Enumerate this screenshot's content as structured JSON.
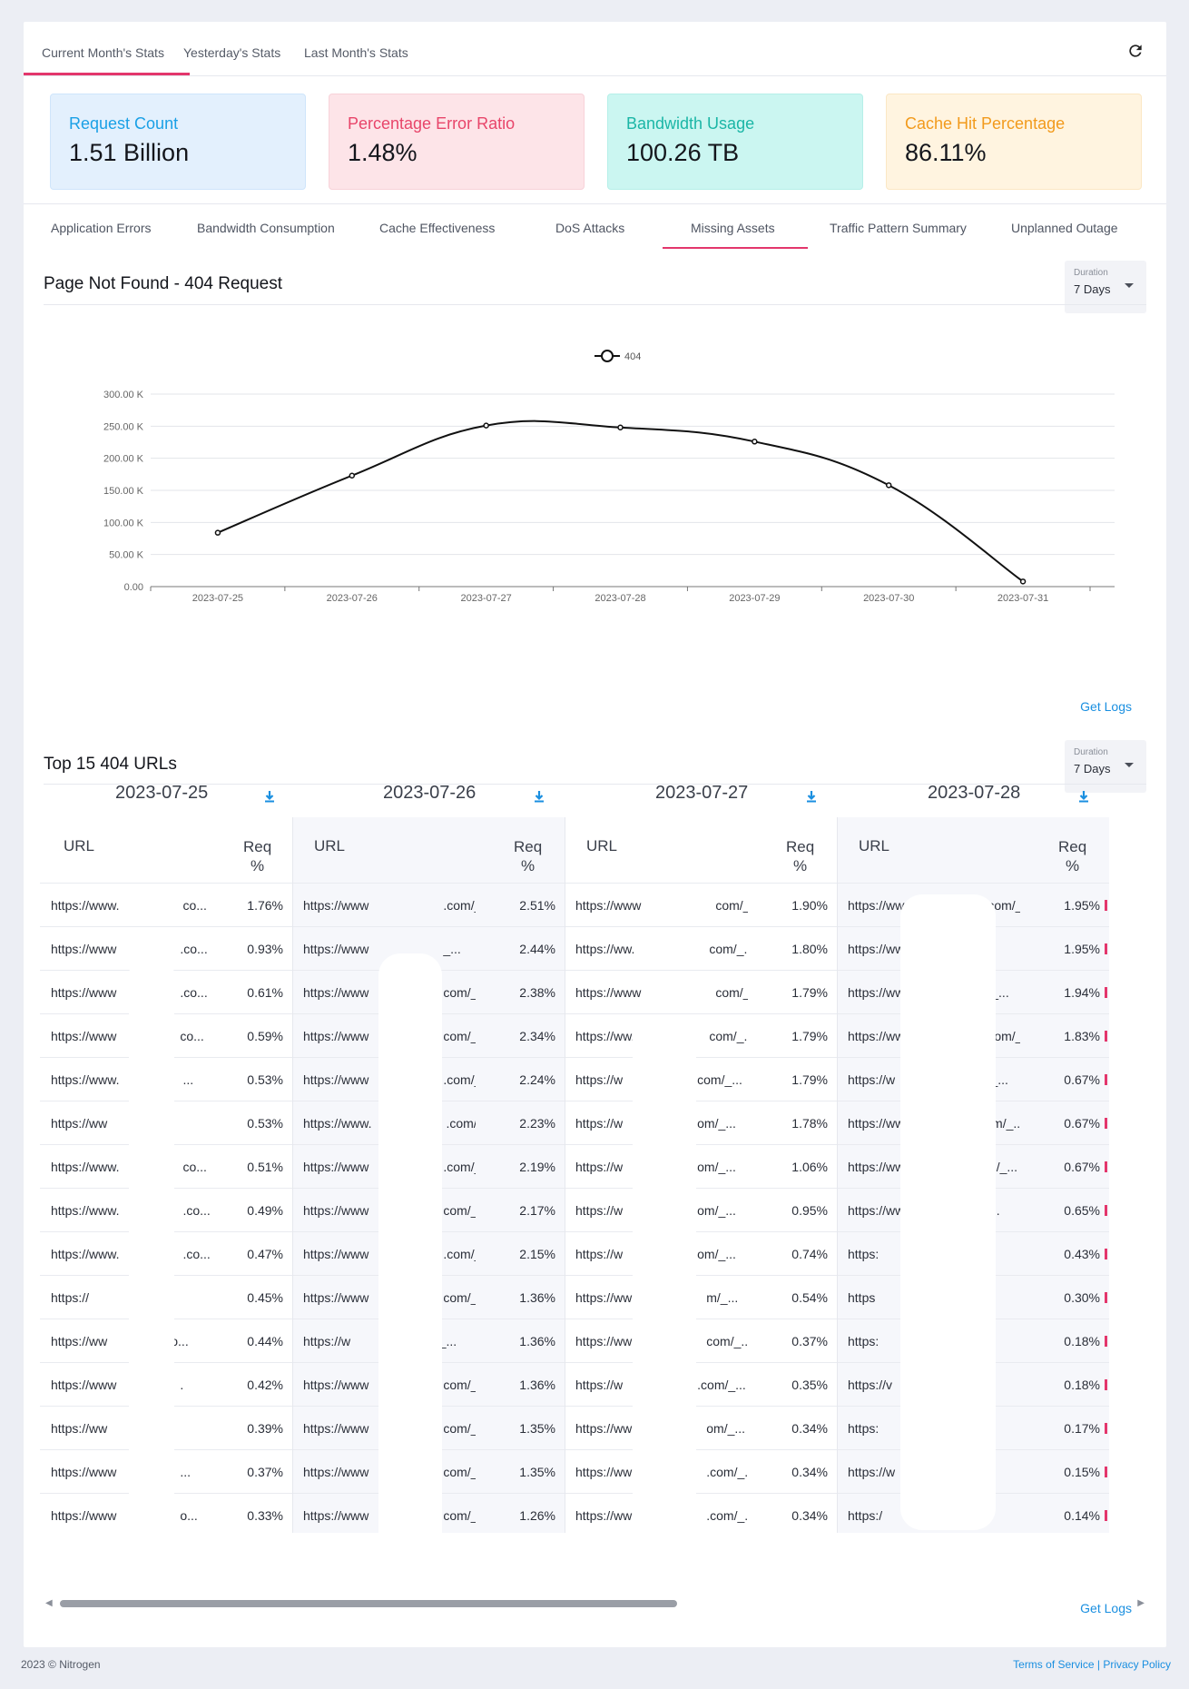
{
  "stats_tabs": [
    "Current Month's Stats",
    "Yesterday's Stats",
    "Last Month's Stats"
  ],
  "kpis": [
    {
      "label": "Request Count",
      "value": "1.51 Billion",
      "label_color": "#1aa0e6",
      "bg": "#e3f0fd",
      "border": "#cfe5fb"
    },
    {
      "label": "Percentage Error Ratio",
      "value": "1.48%",
      "label_color": "#e8456a",
      "bg": "#fde4e8",
      "border": "#f8d2d9"
    },
    {
      "label": "Bandwidth Usage",
      "value": "100.26 TB",
      "label_color": "#1bb6a6",
      "bg": "#cbf6f1",
      "border": "#b6efe8"
    },
    {
      "label": "Cache Hit Percentage",
      "value": "86.11%",
      "label_color": "#f29a1c",
      "bg": "#fff4e0",
      "border": "#fbe7c4"
    }
  ],
  "category_tabs": [
    "Application Errors",
    "Bandwidth Consumption",
    "Cache Effectiveness",
    "DoS Attacks",
    "Missing Assets",
    "Traffic Pattern Summary",
    "Unplanned Outage"
  ],
  "active_category": "Missing Assets",
  "chart_section": {
    "title": "Page Not Found - 404 Request",
    "duration_label": "Duration",
    "duration_value": "7 Days",
    "get_logs": "Get Logs"
  },
  "chart_data": {
    "type": "line",
    "legend": [
      "404"
    ],
    "x": [
      "2023-07-25",
      "2023-07-26",
      "2023-07-27",
      "2023-07-28",
      "2023-07-29",
      "2023-07-30",
      "2023-07-31"
    ],
    "series": [
      {
        "name": "404",
        "values": [
          84000,
          173000,
          251000,
          248000,
          226000,
          158000,
          8000
        ]
      }
    ],
    "yticks": [
      "0.00",
      "50.00 K",
      "100.00 K",
      "150.00 K",
      "200.00 K",
      "250.00 K",
      "300.00 K"
    ],
    "ylim": [
      0,
      300000
    ],
    "grid": true,
    "legend_position": "top-center"
  },
  "table_section": {
    "title": "Top 15 404 URLs",
    "duration_label": "Duration",
    "duration_value": "7 Days",
    "get_logs": "Get Logs",
    "col_url": "URL",
    "col_req_line1": "Req",
    "col_req_line2": "%"
  },
  "table": [
    {
      "date": "2023-07-25",
      "rows": [
        {
          "url": "https://www.",
          "tail": "co...",
          "pct": "1.76%"
        },
        {
          "url": "https://www",
          "tail": ".co...",
          "pct": "0.93%"
        },
        {
          "url": "https://www",
          "tail": ".co...",
          "pct": "0.61%"
        },
        {
          "url": "https://www",
          "tail": "co...",
          "pct": "0.59%"
        },
        {
          "url": "https://www.",
          "tail": "...",
          "pct": "0.53%"
        },
        {
          "url": "https://ww",
          "tail": ".",
          "pct": "0.53%"
        },
        {
          "url": "https://www.",
          "tail": "co...",
          "pct": "0.51%"
        },
        {
          "url": "https://www.",
          "tail": ".co...",
          "pct": "0.49%"
        },
        {
          "url": "https://www.",
          "tail": ".co...",
          "pct": "0.47%"
        },
        {
          "url": "https://",
          "tail": ":...",
          "pct": "0.45%"
        },
        {
          "url": "https://ww",
          "tail": "o...",
          "pct": "0.44%"
        },
        {
          "url": "https://www",
          "tail": ".",
          "pct": "0.42%"
        },
        {
          "url": "https://ww",
          "tail": "",
          "pct": "0.39%"
        },
        {
          "url": "https://www",
          "tail": "...",
          "pct": "0.37%"
        },
        {
          "url": "https://www",
          "tail": "o...",
          "pct": "0.33%"
        }
      ]
    },
    {
      "date": "2023-07-26",
      "rows": [
        {
          "url": "https://www",
          "tail": ".com/_...",
          "pct": "2.51%"
        },
        {
          "url": "https://www",
          "tail": "_...",
          "pct": "2.44%"
        },
        {
          "url": "https://www",
          "tail": "com/_...",
          "pct": "2.38%"
        },
        {
          "url": "https://www",
          "tail": "com/_...",
          "pct": "2.34%"
        },
        {
          "url": "https://www",
          "tail": ".com/_...",
          "pct": "2.24%"
        },
        {
          "url": "https://www.",
          "tail": ".com/_...",
          "pct": "2.23%"
        },
        {
          "url": "https://www",
          "tail": ".com/_...",
          "pct": "2.19%"
        },
        {
          "url": "https://www",
          "tail": "com/_...",
          "pct": "2.17%"
        },
        {
          "url": "https://www",
          "tail": ".com/_...",
          "pct": "2.15%"
        },
        {
          "url": "https://www",
          "tail": "com/_...",
          "pct": "1.36%"
        },
        {
          "url": "https://w",
          "tail": "m/_...",
          "pct": "1.36%"
        },
        {
          "url": "https://www",
          "tail": "com/_...",
          "pct": "1.36%"
        },
        {
          "url": "https://www",
          "tail": "com/_...",
          "pct": "1.35%"
        },
        {
          "url": "https://www",
          "tail": "com/_...",
          "pct": "1.35%"
        },
        {
          "url": "https://www",
          "tail": "com/_...",
          "pct": "1.26%"
        }
      ]
    },
    {
      "date": "2023-07-27",
      "rows": [
        {
          "url": "https://www",
          "tail": "com/_...",
          "pct": "1.90%"
        },
        {
          "url": "https://ww.",
          "tail": "com/_...",
          "pct": "1.80%"
        },
        {
          "url": "https://www",
          "tail": "com/_...",
          "pct": "1.79%"
        },
        {
          "url": "https://ww.",
          "tail": "com/_...",
          "pct": "1.79%"
        },
        {
          "url": "https://w",
          "tail": "com/_...",
          "pct": "1.79%"
        },
        {
          "url": "https://w",
          "tail": "om/_...",
          "pct": "1.78%"
        },
        {
          "url": "https://w",
          "tail": "om/_...",
          "pct": "1.06%"
        },
        {
          "url": "https://w",
          "tail": "om/_...",
          "pct": "0.95%"
        },
        {
          "url": "https://w",
          "tail": "om/_...",
          "pct": "0.74%"
        },
        {
          "url": "https://ww",
          "tail": "m/_...",
          "pct": "0.54%"
        },
        {
          "url": "https://ww",
          "tail": "com/_...",
          "pct": "0.37%"
        },
        {
          "url": "https://w",
          "tail": ".com/_...",
          "pct": "0.35%"
        },
        {
          "url": "https://ww",
          "tail": "om/_...",
          "pct": "0.34%"
        },
        {
          "url": "https://ww",
          "tail": ".com/_...",
          "pct": "0.34%"
        },
        {
          "url": "https://ww",
          "tail": ".com/_...",
          "pct": "0.34%"
        }
      ]
    },
    {
      "date": "2023-07-28",
      "rows": [
        {
          "url": "https://www",
          "tail": "com/_...",
          "pct": "1.95%"
        },
        {
          "url": "https://ww",
          "tail": "_...",
          "pct": "1.95%"
        },
        {
          "url": "https://www",
          "tail": "/_...",
          "pct": "1.94%"
        },
        {
          "url": "https://www",
          "tail": "com/_...",
          "pct": "1.83%"
        },
        {
          "url": "https://w",
          "tail": "om/_...",
          "pct": "0.67%"
        },
        {
          "url": "https://ww",
          "tail": "com/_...",
          "pct": "0.67%"
        },
        {
          "url": "https://ww",
          "tail": "om/_...",
          "pct": "0.67%"
        },
        {
          "url": "https://ww",
          "tail": "/_...",
          "pct": "0.65%"
        },
        {
          "url": "https:",
          "tail": "/",
          "pct": "0.43%"
        },
        {
          "url": "https",
          "tail": "/_...",
          "pct": "0.30%"
        },
        {
          "url": "https:",
          "tail": "..",
          "pct": "0.18%"
        },
        {
          "url": "https://v",
          "tail": "/_...",
          "pct": "0.18%"
        },
        {
          "url": "https:",
          "tail": "/@",
          "pct": "0.17%"
        },
        {
          "url": "https://w",
          "tail": "_...",
          "pct": "0.15%"
        },
        {
          "url": "https:/",
          "tail": "/_...",
          "pct": "0.14%"
        }
      ]
    }
  ],
  "footer": {
    "copyright": "2023 © Nitrogen",
    "terms": "Terms of Service",
    "separator": "|",
    "privacy": "Privacy Policy"
  }
}
